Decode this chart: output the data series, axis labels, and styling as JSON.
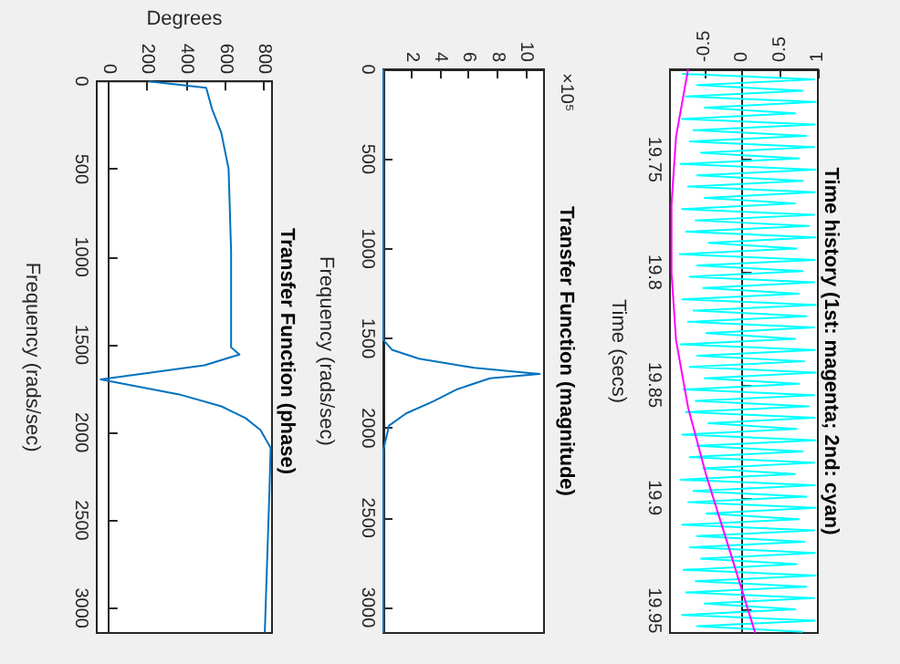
{
  "chart_data": [
    {
      "type": "line",
      "title": "Time history (1st: magenta; 2nd: cyan)",
      "ylabel": "Time (secs)",
      "ylim": [
        19.96,
        19.71
      ],
      "yticks": [
        19.75,
        19.8,
        19.85,
        19.9,
        19.95
      ],
      "xlim": [
        -0.96,
        1
      ],
      "xticks": [
        -0.5,
        0,
        0.5,
        1
      ],
      "series": [
        {
          "color": "#00ffff",
          "values": [
            19.712,
            19.7145,
            19.717,
            19.7195,
            19.722,
            19.7245,
            19.727,
            19.7295,
            19.732,
            19.7345,
            19.737,
            19.7395,
            19.742,
            19.7445,
            19.747,
            19.7495,
            19.752,
            19.7545,
            19.757,
            19.7595,
            19.762,
            19.7645,
            19.767,
            19.7695,
            19.772,
            19.7745,
            19.777,
            19.7795,
            19.782,
            19.7845,
            19.787,
            19.7895,
            19.792,
            19.7945,
            19.797,
            19.7995,
            19.802,
            19.8045,
            19.807,
            19.8095,
            19.812,
            19.8145,
            19.817,
            19.8195,
            19.822,
            19.8245,
            19.827,
            19.8295,
            19.832,
            19.8345,
            19.837,
            19.8395,
            19.842,
            19.8445,
            19.847,
            19.8495,
            19.852,
            19.8545,
            19.857,
            19.8595,
            19.862,
            19.8645,
            19.867,
            19.8695,
            19.872,
            19.8745,
            19.877,
            19.8795,
            19.882,
            19.8845,
            19.887,
            19.8895,
            19.892,
            19.8945,
            19.897,
            19.8995,
            19.902,
            19.9045,
            19.907,
            19.9095,
            19.912,
            19.9145,
            19.917,
            19.9195,
            19.922,
            19.9245,
            19.927,
            19.9295,
            19.932,
            19.9345,
            19.937,
            19.9395,
            19.942,
            19.9445,
            19.947,
            19.9495,
            19.952,
            19.9545,
            19.957,
            19.9595
          ],
          "x": [
            -0.8,
            0.95,
            -0.6,
            0.8,
            -0.75,
            0.97,
            -0.5,
            0.7,
            -0.8,
            0.96,
            -0.65,
            0.85,
            -0.7,
            0.95,
            -0.55,
            0.75,
            -0.82,
            0.97,
            -0.6,
            0.8,
            -0.72,
            0.96,
            -0.5,
            0.7,
            -0.8,
            0.95,
            -0.62,
            0.88,
            -0.75,
            0.97,
            -0.45,
            0.72,
            -0.83,
            0.96,
            -0.6,
            0.8,
            -0.7,
            0.95,
            -0.52,
            0.75,
            -0.8,
            0.97,
            -0.65,
            0.85,
            -0.72,
            0.95,
            -0.48,
            0.7,
            -0.82,
            0.96,
            -0.6,
            0.82,
            -0.7,
            0.97,
            -0.5,
            0.75,
            -0.78,
            0.95,
            -0.62,
            0.88,
            -0.75,
            0.96,
            -0.45,
            0.72,
            -0.8,
            0.97,
            -0.6,
            0.8,
            -0.7,
            0.95,
            -0.52,
            0.7,
            -0.82,
            0.96,
            -0.65,
            0.85,
            -0.72,
            0.97,
            -0.48,
            0.75,
            -0.8,
            0.95,
            -0.6,
            0.82,
            -0.7,
            0.96,
            -0.55,
            0.72,
            -0.78,
            0.97,
            -0.62,
            0.85,
            -0.75,
            0.95,
            -0.5,
            0.7,
            -0.8,
            0.96,
            -0.6,
            0.8
          ]
        },
        {
          "color": "#ff00ff",
          "values": [
            19.71,
            19.74,
            19.77,
            19.8,
            19.83,
            19.86,
            19.89,
            19.92,
            19.96
          ],
          "x": [
            -0.72,
            -0.88,
            -0.94,
            -0.94,
            -0.88,
            -0.72,
            -0.48,
            -0.2,
            0.17
          ]
        }
      ]
    },
    {
      "type": "line",
      "title": "Transfer Function (magnitude)",
      "ylabel": "Frequency (rads/sec)",
      "annotations": [
        "×10⁵"
      ],
      "ylim": [
        3142,
        0
      ],
      "yticks": [
        0,
        500,
        1000,
        1500,
        2000,
        2500,
        3000
      ],
      "xlim": [
        0,
        11.3
      ],
      "xticks": [
        2,
        4,
        6,
        8,
        10
      ],
      "series": [
        {
          "color": "#0072bd",
          "values": [
            0,
            500,
            1000,
            1508,
            1563,
            1613,
            1664,
            1688,
            1698,
            1722,
            1783,
            1851,
            1918,
            1986,
            2121,
            2500,
            3142
          ],
          "x": [
            0,
            0,
            0,
            0,
            0.6,
            2.5,
            6.4,
            9.6,
            11.0,
            7.5,
            5.2,
            3.5,
            1.6,
            0.4,
            0,
            0,
            0
          ]
        }
      ]
    },
    {
      "type": "line",
      "title": "Transfer Function (phase)",
      "ylabel": "Frequency (rads/sec)",
      "xlabel": "Degrees",
      "ylim": [
        3142,
        0
      ],
      "yticks": [
        0,
        500,
        1000,
        1500,
        2000,
        2500,
        3000
      ],
      "xlim": [
        -60,
        840
      ],
      "xticks": [
        0,
        200,
        400,
        600,
        800
      ],
      "series": [
        {
          "color": "#0072bd",
          "values": [
            0,
            37,
            157,
            295,
            498,
            973,
            1515,
            1556,
            1617,
            1698,
            1783,
            1851,
            1918,
            1986,
            2088,
            2325,
            3139
          ],
          "x": [
            208,
            502,
            532,
            580,
            617,
            630,
            630,
            673,
            493,
            -40,
            363,
            580,
            704,
            781,
            833,
            827,
            803
          ]
        }
      ]
    }
  ]
}
